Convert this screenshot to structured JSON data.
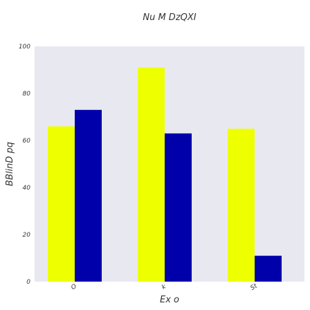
{
  "chart_data": {
    "type": "bar",
    "title": "Nu M DzQXI",
    "xlabel": "Ex o",
    "ylabel": "BBlinD pq",
    "categories": [
      "O",
      "k",
      "St"
    ],
    "series": [
      {
        "color": "#eeff00",
        "values": [
          66,
          91,
          65
        ]
      },
      {
        "color": "#0000aa",
        "values": [
          73,
          63,
          11
        ]
      }
    ],
    "ylim": [
      0,
      100
    ],
    "yticks": [
      0,
      20,
      40,
      60,
      80,
      100
    ],
    "grid": false,
    "background": "#e8e8f1"
  }
}
